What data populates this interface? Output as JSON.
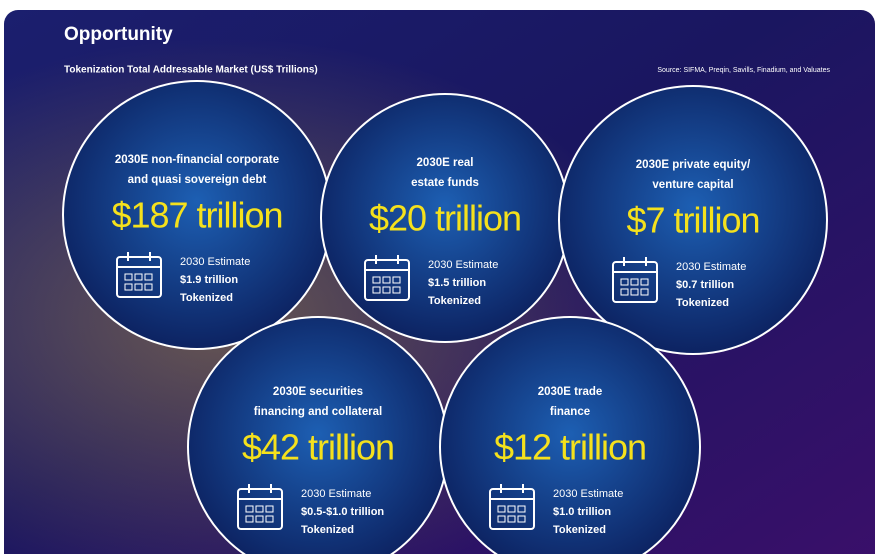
{
  "header": {
    "title": "Opportunity",
    "subtitle": "Tokenization Total Addressable Market (US$ Trillions)",
    "source": "Source: SIFMA, Preqin, Savills, Finadium, and Valuates"
  },
  "circles": [
    {
      "label": [
        "2030E non-financial corporate",
        "and quasi sovereign debt"
      ],
      "value": "$187 trillion",
      "estimate": [
        "2030 Estimate",
        "$1.9 trillion",
        "Tokenized"
      ]
    },
    {
      "label": [
        "2030E real",
        "estate funds"
      ],
      "value": "$20 trillion",
      "estimate": [
        "2030 Estimate",
        "$1.5 trillion",
        "Tokenized"
      ]
    },
    {
      "label": [
        "2030E private equity/",
        "venture capital"
      ],
      "value": "$7 trillion",
      "estimate": [
        "2030 Estimate",
        "$0.7 trillion",
        "Tokenized"
      ]
    },
    {
      "label": [
        "2030E securities",
        "financing and collateral"
      ],
      "value": "$42 trillion",
      "estimate": [
        "2030 Estimate",
        "$0.5-$1.0 trillion",
        "Tokenized"
      ]
    },
    {
      "label": [
        "2030E trade",
        "finance"
      ],
      "value": "$12 trillion",
      "estimate": [
        "2030 Estimate",
        "$1.0 trillion",
        "Tokenized"
      ]
    }
  ]
}
